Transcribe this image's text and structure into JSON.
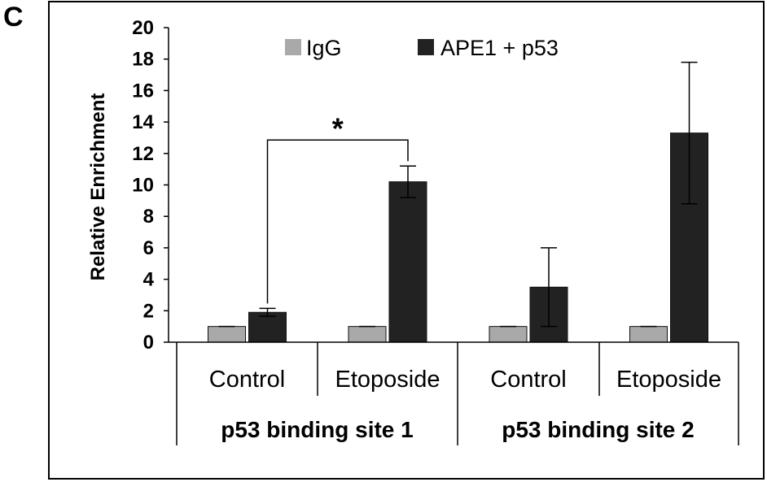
{
  "panel_label": "C",
  "chart_data": {
    "type": "bar",
    "ylabel": "Relative Enrichment",
    "ylim": [
      0,
      20
    ],
    "yticks": [
      "0",
      "2",
      "4",
      "6",
      "8",
      "10",
      "12",
      "14",
      "16",
      "18",
      "20"
    ],
    "categories": [
      "Control",
      "Etoposide",
      "Control",
      "Etoposide"
    ],
    "groups": [
      "p53 binding site 1",
      "p53 binding site 2"
    ],
    "series": [
      {
        "name": "IgG",
        "color": "#a9a9a9",
        "values": [
          1.0,
          1.0,
          1.0,
          1.0
        ],
        "errors": [
          0,
          0,
          0,
          0
        ]
      },
      {
        "name": "APE1 + p53",
        "color": "#222222",
        "values": [
          1.9,
          10.2,
          3.5,
          13.3
        ],
        "errors": [
          0.25,
          1.0,
          2.5,
          4.5
        ]
      }
    ],
    "significance": {
      "from_category": 0,
      "to_category": 1,
      "series": "APE1 + p53",
      "label": "*"
    },
    "legend_position": "top",
    "grid": false
  }
}
